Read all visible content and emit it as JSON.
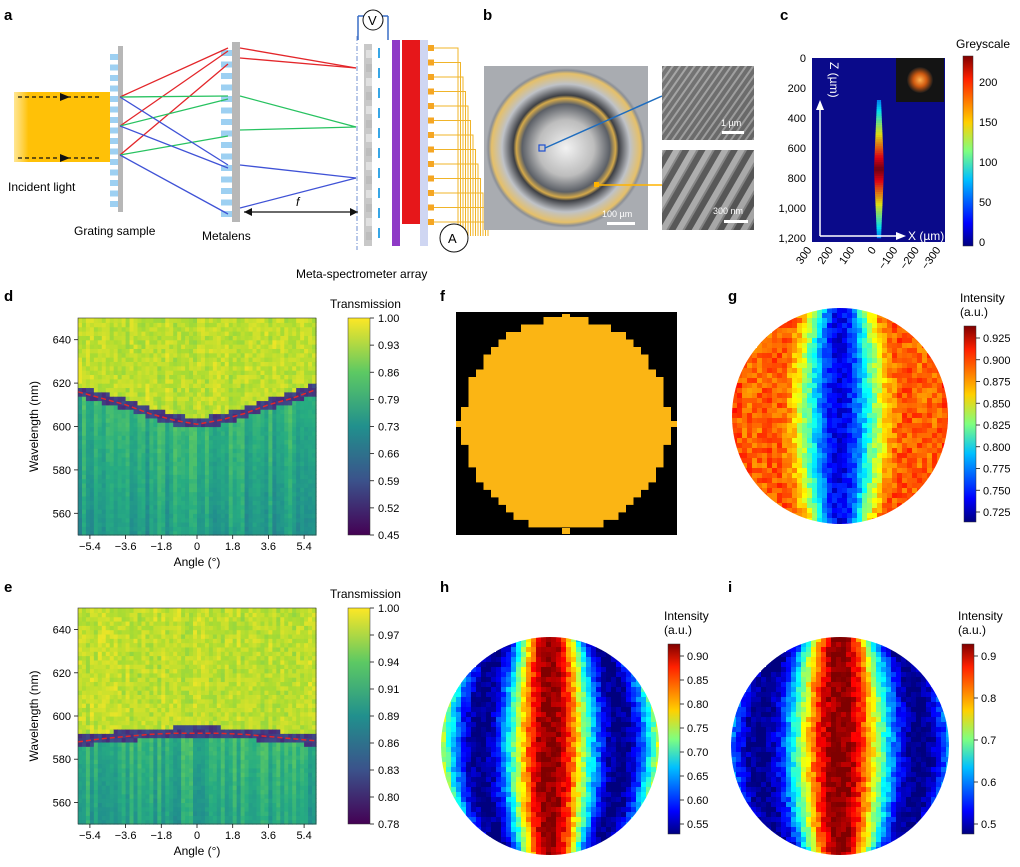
{
  "panel_labels": [
    "a",
    "b",
    "c",
    "d",
    "e",
    "f",
    "g",
    "h",
    "i"
  ],
  "panel_a": {
    "incident_light": "Incident light",
    "grating_sample": "Grating sample",
    "metalens": "Metalens",
    "f_label": "f",
    "array_label": "Meta-spectrometer array",
    "voltmeter": "V",
    "ammeter": "A",
    "colors": {
      "beam": "#ffc107",
      "red": "#e3262a",
      "green": "#27c260",
      "blue": "#3f52d6",
      "wire": "#f0b429",
      "purple": "#8e3ac6"
    }
  },
  "panel_b": {
    "scale_main": "100 µm",
    "scale_top": "1 µm",
    "scale_bottom": "300 nm"
  },
  "panel_c": {
    "colorbar_title": "Greyscale",
    "z_axis": "Z (µm)",
    "x_axis": "X (µm)",
    "z_ticks": [
      "0",
      "200",
      "400",
      "600",
      "800",
      "1,000",
      "1,200"
    ],
    "x_ticks": [
      "300",
      "200",
      "100",
      "0",
      "−100",
      "−200",
      "−300"
    ],
    "cbar_ticks": [
      "200",
      "150",
      "100",
      "50",
      "0"
    ]
  },
  "panel_f": {
    "fill_color": "#fbb514"
  },
  "chart_data": [
    {
      "panel": "d",
      "type": "heatmap",
      "colormap": "viridis",
      "xlabel": "Angle (°)",
      "ylabel": "Wavelength (nm)",
      "x_ticks": [
        "−5.4",
        "−3.6",
        "−1.8",
        "0",
        "1.8",
        "3.6",
        "5.4"
      ],
      "y_ticks": [
        "640",
        "620",
        "600",
        "580",
        "560"
      ],
      "xlim": [
        -6.0,
        6.0
      ],
      "ylim": [
        550,
        650
      ],
      "colorbar_title": "Transmission",
      "colorbar_ticks": [
        "1.00",
        "0.93",
        "0.86",
        "0.79",
        "0.73",
        "0.66",
        "0.59",
        "0.52",
        "0.45"
      ],
      "resonance_curve": {
        "x": [
          -6.0,
          -4.8,
          -3.6,
          -2.4,
          -1.2,
          0,
          1.2,
          2.4,
          3.6,
          4.8,
          6.0
        ],
        "y": [
          616,
          613,
          610,
          606,
          603,
          601,
          603,
          606,
          610,
          613,
          617
        ]
      }
    },
    {
      "panel": "e",
      "type": "heatmap",
      "colormap": "viridis",
      "xlabel": "Angle (°)",
      "ylabel": "Wavelength (nm)",
      "x_ticks": [
        "−5.4",
        "−3.6",
        "−1.8",
        "0",
        "1.8",
        "3.6",
        "5.4"
      ],
      "y_ticks": [
        "640",
        "620",
        "600",
        "580",
        "560"
      ],
      "xlim": [
        -6.0,
        6.0
      ],
      "ylim": [
        550,
        650
      ],
      "colorbar_title": "Transmission",
      "colorbar_ticks": [
        "1.00",
        "0.97",
        "0.94",
        "0.91",
        "0.89",
        "0.86",
        "0.83",
        "0.80",
        "0.78"
      ],
      "resonance_curve": {
        "x": [
          -6.0,
          -4.8,
          -3.6,
          -2.4,
          -1.2,
          0,
          1.2,
          2.4,
          3.6,
          4.8,
          6.0
        ],
        "y": [
          588,
          589.5,
          590.5,
          591.5,
          592,
          592,
          592,
          591.5,
          590.5,
          589.5,
          588.5
        ]
      }
    },
    {
      "panel": "g",
      "type": "heatmap",
      "colormap": "jet",
      "colorbar_title": "Intensity\n(a.u.)",
      "colorbar_ticks": [
        "0.925",
        "0.900",
        "0.875",
        "0.850",
        "0.825",
        "0.800",
        "0.775",
        "0.750",
        "0.725"
      ]
    },
    {
      "panel": "h",
      "type": "heatmap",
      "colormap": "jet",
      "colorbar_title": "Intensity\n(a.u.)",
      "colorbar_ticks": [
        "0.90",
        "0.85",
        "0.80",
        "0.75",
        "0.70",
        "0.65",
        "0.60",
        "0.55"
      ]
    },
    {
      "panel": "i",
      "type": "heatmap",
      "colormap": "jet",
      "colorbar_title": "Intensity\n(a.u.)",
      "colorbar_ticks": [
        "0.9",
        "0.8",
        "0.7",
        "0.6",
        "0.5"
      ]
    }
  ]
}
